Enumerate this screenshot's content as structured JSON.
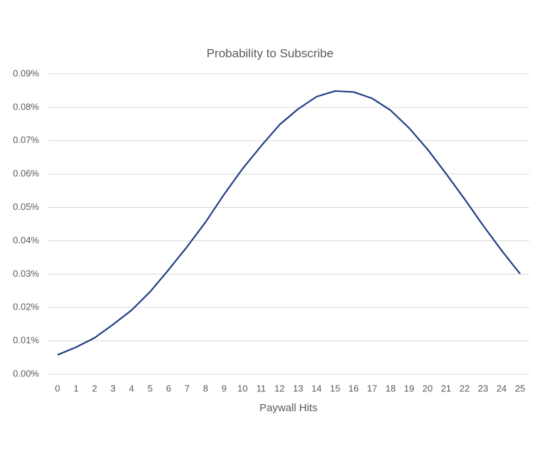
{
  "chart_data": {
    "type": "line",
    "title": "Probability to Subscribe",
    "x_label": "Paywall Hits",
    "categories": [
      "0",
      "1",
      "2",
      "3",
      "4",
      "5",
      "6",
      "7",
      "8",
      "9",
      "10",
      "11",
      "12",
      "13",
      "14",
      "15",
      "16",
      "17",
      "18",
      "19",
      "20",
      "21",
      "22",
      "23",
      "24",
      "25"
    ],
    "series": [
      {
        "name": "Probability to Subscribe",
        "color": "#203f85",
        "values": [
          0.0058,
          0.0081,
          0.0109,
          0.0149,
          0.0192,
          0.0247,
          0.0313,
          0.0382,
          0.0456,
          0.0539,
          0.0616,
          0.0684,
          0.0748,
          0.0795,
          0.0832,
          0.0849,
          0.0846,
          0.0827,
          0.0791,
          0.0738,
          0.0674,
          0.0601,
          0.0525,
          0.0446,
          0.0371,
          0.0301
        ]
      }
    ],
    "ylim": [
      0,
      0.09
    ],
    "yticks": [
      {
        "value": 0,
        "label": "0.00%"
      },
      {
        "value": 0.01,
        "label": "0.01%"
      },
      {
        "value": 0.02,
        "label": "0.02%"
      },
      {
        "value": 0.03,
        "label": "0.03%"
      },
      {
        "value": 0.04,
        "label": "0.04%"
      },
      {
        "value": 0.05,
        "label": "0.05%"
      },
      {
        "value": 0.06,
        "label": "0.06%"
      },
      {
        "value": 0.07,
        "label": "0.07%"
      },
      {
        "value": 0.08,
        "label": "0.08%"
      },
      {
        "value": 0.09,
        "label": "0.09%"
      }
    ],
    "grid": true
  }
}
